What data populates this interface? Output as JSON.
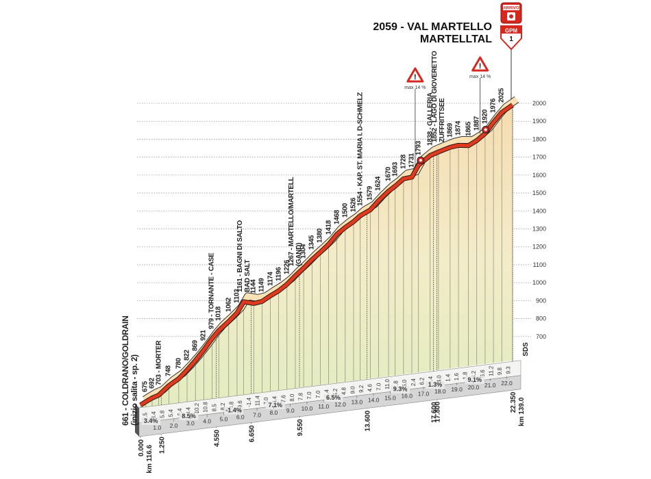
{
  "chart_data": {
    "type": "area",
    "subtitle": "MARTELLTAL",
    "x": [
      0,
      0.3,
      0.7,
      1.1,
      1.7,
      2.3,
      2.8,
      3.3,
      3.8,
      4.3,
      4.7,
      5.3,
      5.8,
      6.2,
      6.8,
      7.3,
      7.8,
      8.3,
      8.8,
      9.3,
      9.8,
      10.3,
      10.8,
      11.3,
      11.8,
      12.3,
      12.8,
      13.2,
      13.8,
      14.3,
      14.9,
      15.3,
      15.8,
      16.3,
      16.7,
      17.4,
      17.9,
      18.6,
      19.1,
      19.7,
      20.2,
      20.7,
      21.2,
      21.7,
      22.35
    ],
    "values": [
      661,
      675,
      692,
      703,
      748,
      780,
      822,
      869,
      921,
      979,
      1018,
      1062,
      1103,
      1161,
      1144,
      1149,
      1174,
      1196,
      1226,
      1267,
      1304,
      1345,
      1380,
      1418,
      1468,
      1500,
      1526,
      1554,
      1579,
      1624,
      1670,
      1693,
      1728,
      1731,
      1793,
      1838,
      1852,
      1869,
      1874,
      1865,
      1887,
      1920,
      1976,
      2025,
      2059
    ],
    "value_labels": [
      "661 - COLDRANO/GOLDRAIN\n(inizio salita - sp. 2)",
      "675",
      "692",
      "703 - MORTER",
      "748",
      "780",
      "822",
      "869",
      "921",
      "979 - TORNANTE - CASE",
      "1018",
      "1062",
      "1103",
      "1161 - BAGNI DI SALTO\nBAD SALT",
      "1144",
      "1149",
      "1174",
      "1196",
      "1226",
      "1267 - MARTELLO/MARTELL\n(GAND)",
      "1304",
      "1345",
      "1380",
      "1418",
      "1468",
      "1500",
      "1526",
      "1554 - KAP. ST. MARIA I. D-SCHMELZ",
      "1579",
      "1624",
      "1670",
      "1693",
      "1728",
      "1731",
      "1793",
      "1838 - GALLERIA",
      "1852 - LAGO DI GIOVERETTO\nZUFFRITTSEE",
      "1869",
      "1874",
      "1865",
      "1887",
      "1920",
      "1976",
      "2025",
      "2059 - VAL MARTELLO"
    ],
    "color": "#e03a1e",
    "xlim": [
      0,
      22.35
    ],
    "xticks": [
      {
        "value": 1,
        "label": "1.0"
      },
      {
        "value": 2,
        "label": "2.0"
      },
      {
        "value": 3,
        "label": "3.0"
      },
      {
        "value": 4,
        "label": "4.0"
      },
      {
        "value": 5,
        "label": "5.0"
      },
      {
        "value": 6,
        "label": "6.0"
      },
      {
        "value": 7,
        "label": "7.0"
      },
      {
        "value": 8,
        "label": "8.0"
      },
      {
        "value": 9,
        "label": "9.0"
      },
      {
        "value": 10,
        "label": "10.0"
      },
      {
        "value": 11,
        "label": "11.0"
      },
      {
        "value": 12,
        "label": "12.0"
      },
      {
        "value": 13,
        "label": "13.0"
      },
      {
        "value": 14,
        "label": "14.0"
      },
      {
        "value": 15,
        "label": "15.0"
      },
      {
        "value": 16,
        "label": "16.0"
      },
      {
        "value": 17,
        "label": "17.0"
      },
      {
        "value": 18,
        "label": "18.0"
      },
      {
        "value": 19,
        "label": "19.0"
      },
      {
        "value": 20,
        "label": "20.0"
      },
      {
        "value": 21,
        "label": "21.0"
      },
      {
        "value": 22,
        "label": "22.0"
      }
    ],
    "ylim": [
      600,
      2000
    ],
    "yticks": [
      700,
      800,
      900,
      1000,
      1100,
      1200,
      1300,
      1400,
      1500,
      1600,
      1700,
      1800,
      1900,
      2000
    ],
    "grid": true,
    "km_markers": [
      {
        "value": 0,
        "label": "0.000"
      },
      {
        "value": 1.25,
        "label": "1.250"
      },
      {
        "value": 4.55,
        "label": "4.550"
      },
      {
        "value": 6.65,
        "label": "6.650"
      },
      {
        "value": 9.55,
        "label": "9.550"
      },
      {
        "value": 13.6,
        "label": "13.600"
      },
      {
        "value": 17.6,
        "label": "17.600"
      },
      {
        "value": 17.8,
        "label": "17.800"
      },
      {
        "value": 22.35,
        "label": "22.350"
      }
    ],
    "start_km": "km 116.6",
    "end_km": "km 139.0",
    "segment_gradients": [
      {
        "value": 3.4,
        "label": "3.4%"
      },
      {
        "value": 8.5,
        "label": "8.5%"
      },
      {
        "value": -1.4,
        "label": "-1.4%"
      },
      {
        "value": 7.1,
        "label": "7.1%"
      },
      {
        "value": 6.5,
        "label": "6.5%"
      },
      {
        "value": 9.3,
        "label": "9.3%"
      },
      {
        "value": 1.3,
        "label": "1.3%"
      },
      {
        "value": 9.1,
        "label": "9.1%"
      }
    ],
    "km_gradients": [
      "2.5",
      "3.4",
      "5.8",
      "5.4",
      "6.4",
      "8.4",
      "10.2",
      "10.8",
      "8.5",
      "8.2",
      "8.8",
      "9.6",
      "-1.4",
      "11.4",
      "7.0",
      "6.4",
      "7.6",
      "8.0",
      "7.8",
      "7.0",
      "7.0",
      "6.4",
      "5.2",
      "4.8",
      "9.0",
      "9.2",
      "4.6",
      "7.0",
      "11.0",
      "7.8",
      "6.0",
      "2.4",
      "6.2",
      "3.4",
      "4.0",
      "1.4",
      "1.6",
      "1.8",
      "4.2",
      "6.6",
      "11.2",
      "9.8",
      "9.3"
    ],
    "max_gradient_markers": [
      {
        "x": 16.5,
        "label": "max 14 %"
      },
      {
        "x": 20.4,
        "label": "max 14 %"
      }
    ],
    "finish_badge": "ARRIVO",
    "climb_badge": {
      "label": "GPM",
      "category": 1
    },
    "sds_label": "SDS"
  }
}
